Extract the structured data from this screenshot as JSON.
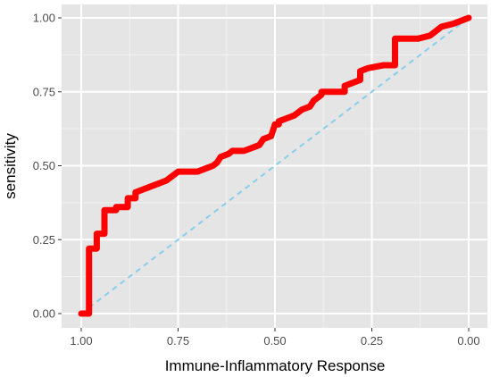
{
  "chart_data": {
    "type": "line",
    "title": "",
    "xlabel": "Immune-Inflammatory Response",
    "ylabel": "sensitivity",
    "x_axis": "specificity (reversed, 1 to 0)",
    "xlim": [
      1.0,
      0.0
    ],
    "ylim": [
      0.0,
      1.0
    ],
    "x_ticks": [
      "1.00",
      "0.75",
      "0.50",
      "0.25",
      "0.00"
    ],
    "y_ticks": [
      "0.00",
      "0.25",
      "0.50",
      "0.75",
      "1.00"
    ],
    "grid": true,
    "legend": "none",
    "background_color": "#e5e5e5",
    "series": [
      {
        "color": "#ff0000",
        "style": "solid-thick-step",
        "points": [
          [
            1.0,
            0.0
          ],
          [
            0.98,
            0.0
          ],
          [
            0.98,
            0.22
          ],
          [
            0.96,
            0.22
          ],
          [
            0.96,
            0.27
          ],
          [
            0.94,
            0.27
          ],
          [
            0.94,
            0.35
          ],
          [
            0.91,
            0.35
          ],
          [
            0.91,
            0.36
          ],
          [
            0.88,
            0.36
          ],
          [
            0.88,
            0.39
          ],
          [
            0.86,
            0.39
          ],
          [
            0.86,
            0.41
          ],
          [
            0.84,
            0.42
          ],
          [
            0.82,
            0.43
          ],
          [
            0.8,
            0.44
          ],
          [
            0.78,
            0.45
          ],
          [
            0.77,
            0.46
          ],
          [
            0.76,
            0.47
          ],
          [
            0.75,
            0.48
          ],
          [
            0.7,
            0.48
          ],
          [
            0.68,
            0.49
          ],
          [
            0.66,
            0.5
          ],
          [
            0.65,
            0.51
          ],
          [
            0.64,
            0.53
          ],
          [
            0.62,
            0.54
          ],
          [
            0.61,
            0.55
          ],
          [
            0.58,
            0.55
          ],
          [
            0.56,
            0.56
          ],
          [
            0.54,
            0.57
          ],
          [
            0.53,
            0.59
          ],
          [
            0.51,
            0.6
          ],
          [
            0.5,
            0.64
          ],
          [
            0.49,
            0.64
          ],
          [
            0.49,
            0.65
          ],
          [
            0.47,
            0.66
          ],
          [
            0.45,
            0.67
          ],
          [
            0.43,
            0.69
          ],
          [
            0.41,
            0.7
          ],
          [
            0.4,
            0.72
          ],
          [
            0.38,
            0.74
          ],
          [
            0.38,
            0.75
          ],
          [
            0.32,
            0.75
          ],
          [
            0.32,
            0.77
          ],
          [
            0.3,
            0.78
          ],
          [
            0.28,
            0.79
          ],
          [
            0.28,
            0.82
          ],
          [
            0.26,
            0.83
          ],
          [
            0.22,
            0.84
          ],
          [
            0.19,
            0.84
          ],
          [
            0.19,
            0.93
          ],
          [
            0.13,
            0.93
          ],
          [
            0.1,
            0.94
          ],
          [
            0.09,
            0.95
          ],
          [
            0.07,
            0.97
          ],
          [
            0.04,
            0.98
          ],
          [
            0.02,
            0.99
          ],
          [
            0.0,
            1.0
          ]
        ]
      },
      {
        "color": "#87ceeb",
        "style": "dashed",
        "points": [
          [
            1.0,
            0.0
          ],
          [
            0.0,
            1.0
          ]
        ]
      }
    ]
  }
}
